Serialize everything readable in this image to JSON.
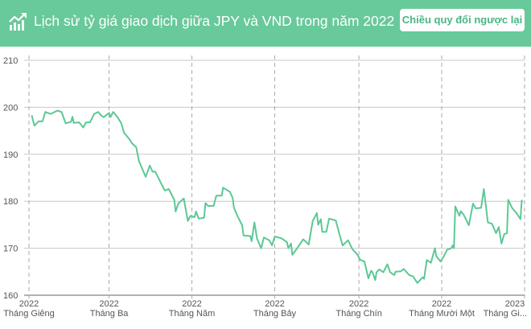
{
  "header": {
    "icon": "chart-trend-up-icon",
    "title": "Lịch sử tỷ giá giao dịch giữa JPY và VND trong năm 2022",
    "reverse_button": "Chiều quy đổi ngược lại"
  },
  "colors": {
    "header_bg": "#68c99a",
    "line": "#5cc894",
    "grid": "#c8c8c8"
  },
  "chart_data": {
    "type": "line",
    "title": "",
    "xlabel": "",
    "ylabel": "",
    "ylim": [
      160,
      210
    ],
    "yticks": [
      160,
      170,
      180,
      190,
      200,
      210
    ],
    "xlim": [
      "2022-01-01",
      "2023-01-01"
    ],
    "xticks": [
      {
        "date": "2022-01-01",
        "year": "2022",
        "month": "Tháng Giêng"
      },
      {
        "date": "2022-03-01",
        "year": "2022",
        "month": "Tháng Ba"
      },
      {
        "date": "2022-05-01",
        "year": "2022",
        "month": "Tháng Năm"
      },
      {
        "date": "2022-07-01",
        "year": "2022",
        "month": "Tháng Bảy"
      },
      {
        "date": "2022-09-01",
        "year": "2022",
        "month": "Tháng Chín"
      },
      {
        "date": "2022-11-01",
        "year": "2022",
        "month": "Tháng Mười Một"
      },
      {
        "date": "2023-01-01",
        "year": "2023",
        "month": "Tháng Gi..."
      }
    ],
    "grid": true,
    "x": [
      "2022-01-03",
      "2022-01-05",
      "2022-01-08",
      "2022-01-11",
      "2022-01-13",
      "2022-01-17",
      "2022-01-22",
      "2022-01-25",
      "2022-01-28",
      "2022-02-01",
      "2022-02-02",
      "2022-02-03",
      "2022-02-07",
      "2022-02-10",
      "2022-02-12",
      "2022-02-15",
      "2022-02-18",
      "2022-02-21",
      "2022-02-23",
      "2022-02-25",
      "2022-03-01",
      "2022-03-02",
      "2022-03-04",
      "2022-03-07",
      "2022-03-10",
      "2022-03-12",
      "2022-03-16",
      "2022-03-18",
      "2022-03-21",
      "2022-03-23",
      "2022-03-25",
      "2022-03-28",
      "2022-03-31",
      "2022-04-02",
      "2022-04-04",
      "2022-04-08",
      "2022-04-11",
      "2022-04-14",
      "2022-04-18",
      "2022-04-19",
      "2022-04-21",
      "2022-04-25",
      "2022-04-28",
      "2022-04-30",
      "2022-05-03",
      "2022-05-04",
      "2022-05-06",
      "2022-05-10",
      "2022-05-11",
      "2022-05-13",
      "2022-05-17",
      "2022-05-19",
      "2022-05-23",
      "2022-05-24",
      "2022-05-29",
      "2022-05-31",
      "2022-06-01",
      "2022-06-04",
      "2022-06-07",
      "2022-06-08",
      "2022-06-13",
      "2022-06-14",
      "2022-06-16",
      "2022-06-18",
      "2022-06-21",
      "2022-06-23",
      "2022-06-27",
      "2022-06-29",
      "2022-07-01",
      "2022-07-06",
      "2022-07-10",
      "2022-07-11",
      "2022-07-13",
      "2022-07-14",
      "2022-07-17",
      "2022-07-22",
      "2022-07-26",
      "2022-07-29",
      "2022-08-01",
      "2022-08-02",
      "2022-08-04",
      "2022-08-05",
      "2022-08-08",
      "2022-08-10",
      "2022-08-15",
      "2022-08-18",
      "2022-08-20",
      "2022-08-24",
      "2022-08-27",
      "2022-08-31",
      "2022-09-02",
      "2022-09-05",
      "2022-09-08",
      "2022-09-10",
      "2022-09-11",
      "2022-09-13",
      "2022-09-14",
      "2022-09-16",
      "2022-09-19",
      "2022-09-22",
      "2022-09-24",
      "2022-09-27",
      "2022-09-28",
      "2022-10-02",
      "2022-10-04",
      "2022-10-08",
      "2022-10-11",
      "2022-10-12",
      "2022-10-14",
      "2022-10-18",
      "2022-10-19",
      "2022-10-21",
      "2022-10-24",
      "2022-10-27",
      "2022-10-28",
      "2022-10-31",
      "2022-11-02",
      "2022-11-05",
      "2022-11-08",
      "2022-11-09",
      "2022-11-10",
      "2022-11-11",
      "2022-11-14",
      "2022-11-15",
      "2022-11-17",
      "2022-11-21",
      "2022-11-24",
      "2022-11-26",
      "2022-11-30",
      "2022-12-02",
      "2022-12-05",
      "2022-12-08",
      "2022-12-11",
      "2022-12-13",
      "2022-12-15",
      "2022-12-17",
      "2022-12-19",
      "2022-12-20",
      "2022-12-23",
      "2022-12-26",
      "2022-12-29",
      "2022-12-30"
    ],
    "values": [
      198.3,
      196.1,
      197.0,
      197.0,
      199.0,
      198.6,
      199.3,
      199.0,
      196.6,
      196.9,
      198.0,
      196.7,
      196.8,
      195.7,
      196.8,
      196.8,
      198.6,
      199.0,
      198.3,
      197.9,
      198.8,
      197.9,
      199.0,
      198.0,
      196.6,
      194.6,
      193.2,
      192.3,
      191.5,
      188.6,
      187.2,
      185.2,
      187.6,
      186.3,
      186.3,
      184.0,
      182.3,
      182.6,
      180.3,
      177.8,
      179.5,
      180.6,
      175.8,
      176.9,
      176.6,
      177.8,
      176.3,
      176.5,
      179.6,
      179.0,
      179.0,
      181.2,
      181.2,
      182.9,
      182.0,
      180.7,
      178.6,
      176.6,
      174.9,
      172.7,
      172.6,
      171.5,
      175.5,
      172.0,
      170.0,
      172.3,
      171.7,
      170.6,
      172.5,
      172.1,
      171.3,
      170.0,
      171.0,
      168.6,
      169.8,
      171.9,
      170.8,
      175.8,
      177.5,
      175.0,
      176.2,
      173.5,
      173.5,
      176.3,
      175.9,
      172.6,
      170.6,
      171.7,
      169.9,
      168.6,
      167.5,
      167.2,
      163.6,
      165.2,
      164.9,
      163.2,
      164.9,
      165.5,
      164.9,
      166.6,
      164.9,
      164.3,
      165.0,
      165.1,
      165.6,
      164.3,
      164.0,
      163.5,
      162.6,
      163.8,
      163.5,
      167.5,
      166.9,
      170.0,
      168.3,
      167.2,
      168.0,
      169.7,
      170.0,
      170.6,
      170.0,
      178.9,
      176.9,
      177.9,
      177.2,
      174.9,
      179.5,
      178.5,
      178.6,
      182.6,
      175.5,
      175.2,
      173.2,
      174.5,
      171.0,
      173.0,
      173.2,
      180.3,
      178.5,
      177.5,
      176.2,
      180.3
    ]
  }
}
